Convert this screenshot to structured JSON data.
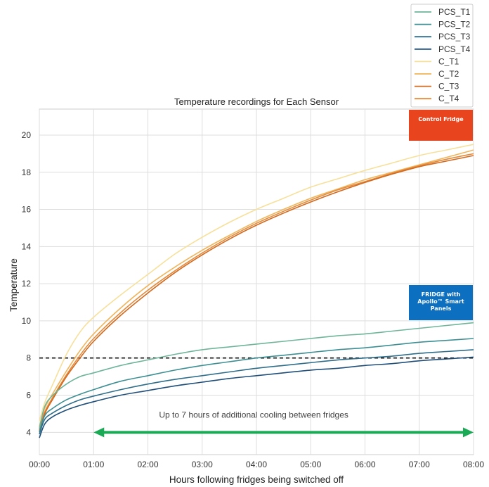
{
  "chart_data": {
    "type": "line",
    "title": "Temperature recordings for Each Sensor",
    "xlabel": "Hours following fridges being switched off",
    "ylabel": "Temperature",
    "xlim": [
      0,
      8
    ],
    "ylim": [
      2.8,
      21.4
    ],
    "x_ticks": [
      0,
      1,
      2,
      3,
      4,
      5,
      6,
      7,
      8
    ],
    "x_tick_labels": [
      "00:00",
      "01:00",
      "02:00",
      "03:00",
      "04:00",
      "05:00",
      "06:00",
      "07:00",
      "08:00"
    ],
    "y_ticks": [
      4,
      6,
      8,
      10,
      12,
      14,
      16,
      18,
      20
    ],
    "y_tick_labels": [
      "4",
      "6",
      "8",
      "10",
      "12",
      "14",
      "16",
      "18",
      "20"
    ],
    "grid": true,
    "legend_position": "top-right, outside plot",
    "x": [
      0,
      0.1,
      0.25,
      0.5,
      0.75,
      1,
      1.5,
      2,
      2.5,
      3,
      3.5,
      4,
      4.5,
      5,
      5.5,
      6,
      6.5,
      7,
      7.5,
      8
    ],
    "series": [
      {
        "name": "PCS_T1",
        "color": "#6fb59a",
        "values": [
          4.2,
          5.4,
          6.0,
          6.6,
          7.0,
          7.2,
          7.6,
          7.9,
          8.2,
          8.45,
          8.6,
          8.75,
          8.9,
          9.05,
          9.2,
          9.3,
          9.45,
          9.6,
          9.75,
          9.9
        ]
      },
      {
        "name": "PCS_T2",
        "color": "#3e8f93",
        "values": [
          4.0,
          4.9,
          5.3,
          5.75,
          6.05,
          6.3,
          6.75,
          7.05,
          7.35,
          7.6,
          7.8,
          8.0,
          8.15,
          8.3,
          8.45,
          8.55,
          8.7,
          8.85,
          8.95,
          9.05
        ]
      },
      {
        "name": "PCS_T3",
        "color": "#2f6e8a",
        "values": [
          3.9,
          4.7,
          5.05,
          5.45,
          5.75,
          5.95,
          6.3,
          6.6,
          6.85,
          7.05,
          7.25,
          7.45,
          7.6,
          7.75,
          7.9,
          8.0,
          8.1,
          8.25,
          8.35,
          8.45
        ]
      },
      {
        "name": "PCS_T4",
        "color": "#1f4e79",
        "values": [
          3.7,
          4.45,
          4.85,
          5.2,
          5.45,
          5.65,
          6.0,
          6.25,
          6.5,
          6.7,
          6.9,
          7.05,
          7.2,
          7.35,
          7.45,
          7.6,
          7.7,
          7.85,
          7.95,
          8.05
        ]
      },
      {
        "name": "C_T1",
        "color": "#f7e09a",
        "values": [
          4.6,
          5.6,
          6.6,
          8.2,
          9.4,
          10.2,
          11.4,
          12.5,
          13.6,
          14.5,
          15.3,
          16.0,
          16.6,
          17.2,
          17.65,
          18.1,
          18.5,
          18.9,
          19.2,
          19.5
        ]
      },
      {
        "name": "C_T2",
        "color": "#f0b45a",
        "values": [
          4.3,
          5.3,
          6.1,
          7.3,
          8.4,
          9.3,
          10.7,
          11.9,
          12.9,
          13.8,
          14.6,
          15.35,
          16.0,
          16.6,
          17.1,
          17.6,
          18.0,
          18.4,
          18.8,
          19.2
        ]
      },
      {
        "name": "C_T3",
        "color": "#d2691e",
        "values": [
          4.1,
          5.0,
          5.8,
          7.0,
          8.0,
          8.9,
          10.3,
          11.5,
          12.6,
          13.55,
          14.4,
          15.15,
          15.8,
          16.4,
          16.95,
          17.45,
          17.9,
          18.3,
          18.6,
          18.9
        ]
      },
      {
        "name": "C_T4",
        "color": "#e48a3c",
        "values": [
          4.2,
          5.1,
          5.9,
          7.1,
          8.15,
          9.05,
          10.45,
          11.65,
          12.7,
          13.65,
          14.5,
          15.25,
          15.9,
          16.5,
          17.05,
          17.5,
          17.95,
          18.35,
          18.7,
          19.0
        ]
      }
    ],
    "reference_line": {
      "y": 8,
      "style": "dashed",
      "color": "#111111"
    },
    "annotations": {
      "cooling_arrow": {
        "x_start": 1,
        "x_end": 8,
        "y": 4,
        "color": "#1aaa55",
        "text": "Up to 7 hours of additional cooling between fridges"
      },
      "control_badge": {
        "text": "Control Fridge",
        "color": "#e8441e"
      },
      "apollo_badge": {
        "lines": [
          "FRIDGE with",
          "Apollo™ Smart",
          "Panels"
        ],
        "color": "#0c6fc0"
      }
    }
  }
}
